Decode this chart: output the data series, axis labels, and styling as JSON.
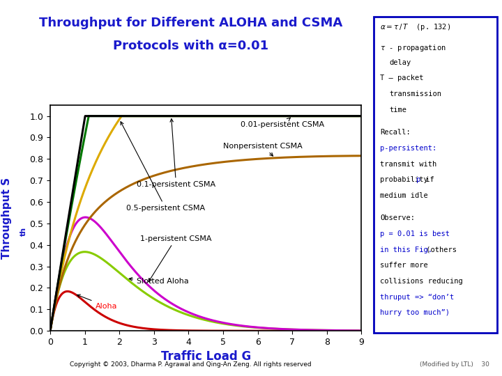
{
  "title_line1": "Throughput for Different ALOHA and CSMA",
  "title_line2": "Protocols with α=0.01",
  "xlabel": "Traffic Load G",
  "ylabel": "Throughput S",
  "ylabel_sub": "th",
  "xlim": [
    0,
    9
  ],
  "ylim": [
    0,
    1.05
  ],
  "xticks": [
    0,
    1,
    2,
    3,
    4,
    5,
    6,
    7,
    8,
    9
  ],
  "yticks": [
    0,
    0.1,
    0.2,
    0.3,
    0.4,
    0.5,
    0.6,
    0.7,
    0.8,
    0.9,
    1.0
  ],
  "alpha": 0.01,
  "bg_color": "#ffffff",
  "title_color": "#1a1acc",
  "axis_label_color": "#1a1acc",
  "curves": {
    "aloha": {
      "color": "#cc0000",
      "label": "Aloha"
    },
    "slotted_aloha": {
      "color": "#88cc00",
      "label": "Slotted Aloha"
    },
    "one_persistent": {
      "color": "#cc00cc",
      "label": "1-persistent CSMA"
    },
    "half_persistent": {
      "color": "#ddaa00",
      "label": "0.5-persistent CSMA"
    },
    "01_persistent": {
      "color": "#007700",
      "label": "0.1-persistent CSMA"
    },
    "nonpersistent": {
      "color": "#aa6600",
      "label": "Nonpersistent CSMA"
    },
    "001_persistent": {
      "color": "#000000",
      "label": "0.01-persistent CSMA"
    }
  },
  "box_color": "#0000bb",
  "copyright": "Copyright © 2003, Dharma P. Agrawal and Qing-An Zeng. All rights reserved",
  "footnote": "(Modified by LTL)    30"
}
